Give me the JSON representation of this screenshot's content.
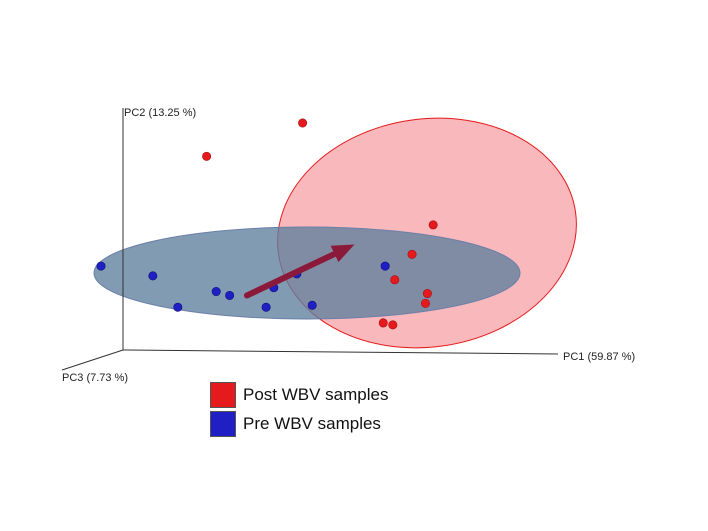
{
  "chart_data": {
    "type": "scatter",
    "axes": {
      "pc1_label": "PC1 (59.87 %)",
      "pc2_label": "PC2 (13.25 %)",
      "pc3_label": "PC3 (7.73 %)"
    },
    "series": [
      {
        "name": "Post WBV samples",
        "color": "#e41a1c",
        "ellipse_fill": "#f7a6aa",
        "points": [
          {
            "x": 0.05,
            "y": 1.0
          },
          {
            "x": -0.45,
            "y": 0.83
          },
          {
            "x": 0.73,
            "y": 0.48
          },
          {
            "x": 0.62,
            "y": 0.33
          },
          {
            "x": 0.53,
            "y": 0.2
          },
          {
            "x": 0.7,
            "y": 0.13
          },
          {
            "x": 0.69,
            "y": 0.08
          },
          {
            "x": 0.47,
            "y": -0.02
          },
          {
            "x": 0.52,
            "y": -0.03
          }
        ]
      },
      {
        "name": "Pre WBV samples",
        "color": "#1f1fc4",
        "ellipse_fill": "#5d7f9e",
        "points": [
          {
            "x": -1.0,
            "y": 0.27
          },
          {
            "x": -0.73,
            "y": 0.22
          },
          {
            "x": -0.4,
            "y": 0.14
          },
          {
            "x": -0.33,
            "y": 0.12
          },
          {
            "x": -0.1,
            "y": 0.16
          },
          {
            "x": 0.02,
            "y": 0.23
          },
          {
            "x": -0.6,
            "y": 0.06
          },
          {
            "x": -0.14,
            "y": 0.06
          },
          {
            "x": 0.1,
            "y": 0.07
          },
          {
            "x": 0.48,
            "y": 0.27
          }
        ]
      }
    ],
    "arrow": {
      "from": [
        -0.24,
        0.12
      ],
      "to": [
        0.32,
        0.38
      ],
      "color": "#8b1a3a"
    },
    "legend": {
      "position": "bottom-left"
    }
  }
}
